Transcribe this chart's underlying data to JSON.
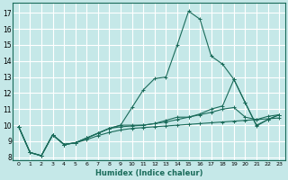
{
  "xlabel": "Humidex (Indice chaleur)",
  "bg_color": "#c5e8e8",
  "grid_color": "#ffffff",
  "line_color": "#1a6b5a",
  "xlim": [
    -0.5,
    23.5
  ],
  "ylim": [
    7.8,
    17.6
  ],
  "xticks": [
    0,
    1,
    2,
    3,
    4,
    5,
    6,
    7,
    8,
    9,
    10,
    11,
    12,
    13,
    14,
    15,
    16,
    17,
    18,
    19,
    20,
    21,
    22,
    23
  ],
  "yticks": [
    8,
    9,
    10,
    11,
    12,
    13,
    14,
    15,
    16,
    17
  ],
  "series": [
    {
      "x": [
        0,
        1,
        2,
        3,
        4,
        5,
        6,
        7,
        8,
        9,
        10,
        11,
        12,
        13,
        14,
        15,
        16,
        17,
        18,
        19,
        20,
        21,
        22,
        23
      ],
      "y": [
        9.9,
        8.3,
        8.1,
        9.4,
        8.8,
        8.9,
        9.2,
        9.5,
        9.8,
        10.0,
        11.1,
        12.2,
        12.9,
        13.0,
        15.0,
        17.1,
        16.6,
        14.3,
        13.8,
        12.85,
        11.4,
        10.0,
        10.35,
        10.65
      ]
    },
    {
      "x": [
        0,
        1,
        2,
        3,
        4,
        5,
        6,
        7,
        8,
        9,
        10,
        11,
        12,
        13,
        14,
        15,
        16,
        17,
        18,
        19,
        20,
        21,
        22,
        23
      ],
      "y": [
        9.9,
        8.3,
        8.1,
        9.4,
        8.8,
        8.9,
        9.2,
        9.5,
        9.8,
        10.0,
        10.0,
        10.0,
        10.1,
        10.3,
        10.5,
        10.5,
        10.7,
        11.0,
        11.2,
        12.85,
        11.4,
        9.95,
        10.35,
        10.65
      ]
    },
    {
      "x": [
        0,
        1,
        2,
        3,
        4,
        5,
        6,
        7,
        8,
        9,
        10,
        11,
        12,
        13,
        14,
        15,
        16,
        17,
        18,
        19,
        20,
        21,
        22,
        23
      ],
      "y": [
        9.9,
        8.3,
        8.1,
        9.4,
        8.8,
        8.9,
        9.2,
        9.5,
        9.8,
        9.9,
        9.95,
        10.0,
        10.1,
        10.2,
        10.35,
        10.5,
        10.65,
        10.8,
        11.0,
        11.1,
        10.5,
        10.35,
        10.55,
        10.65
      ]
    },
    {
      "x": [
        0,
        1,
        2,
        3,
        4,
        5,
        6,
        7,
        8,
        9,
        10,
        11,
        12,
        13,
        14,
        15,
        16,
        17,
        18,
        19,
        20,
        21,
        22,
        23
      ],
      "y": [
        9.9,
        8.3,
        8.1,
        9.4,
        8.8,
        8.9,
        9.1,
        9.35,
        9.55,
        9.7,
        9.8,
        9.85,
        9.9,
        9.95,
        10.0,
        10.05,
        10.1,
        10.15,
        10.2,
        10.25,
        10.3,
        10.35,
        10.4,
        10.45
      ]
    }
  ]
}
